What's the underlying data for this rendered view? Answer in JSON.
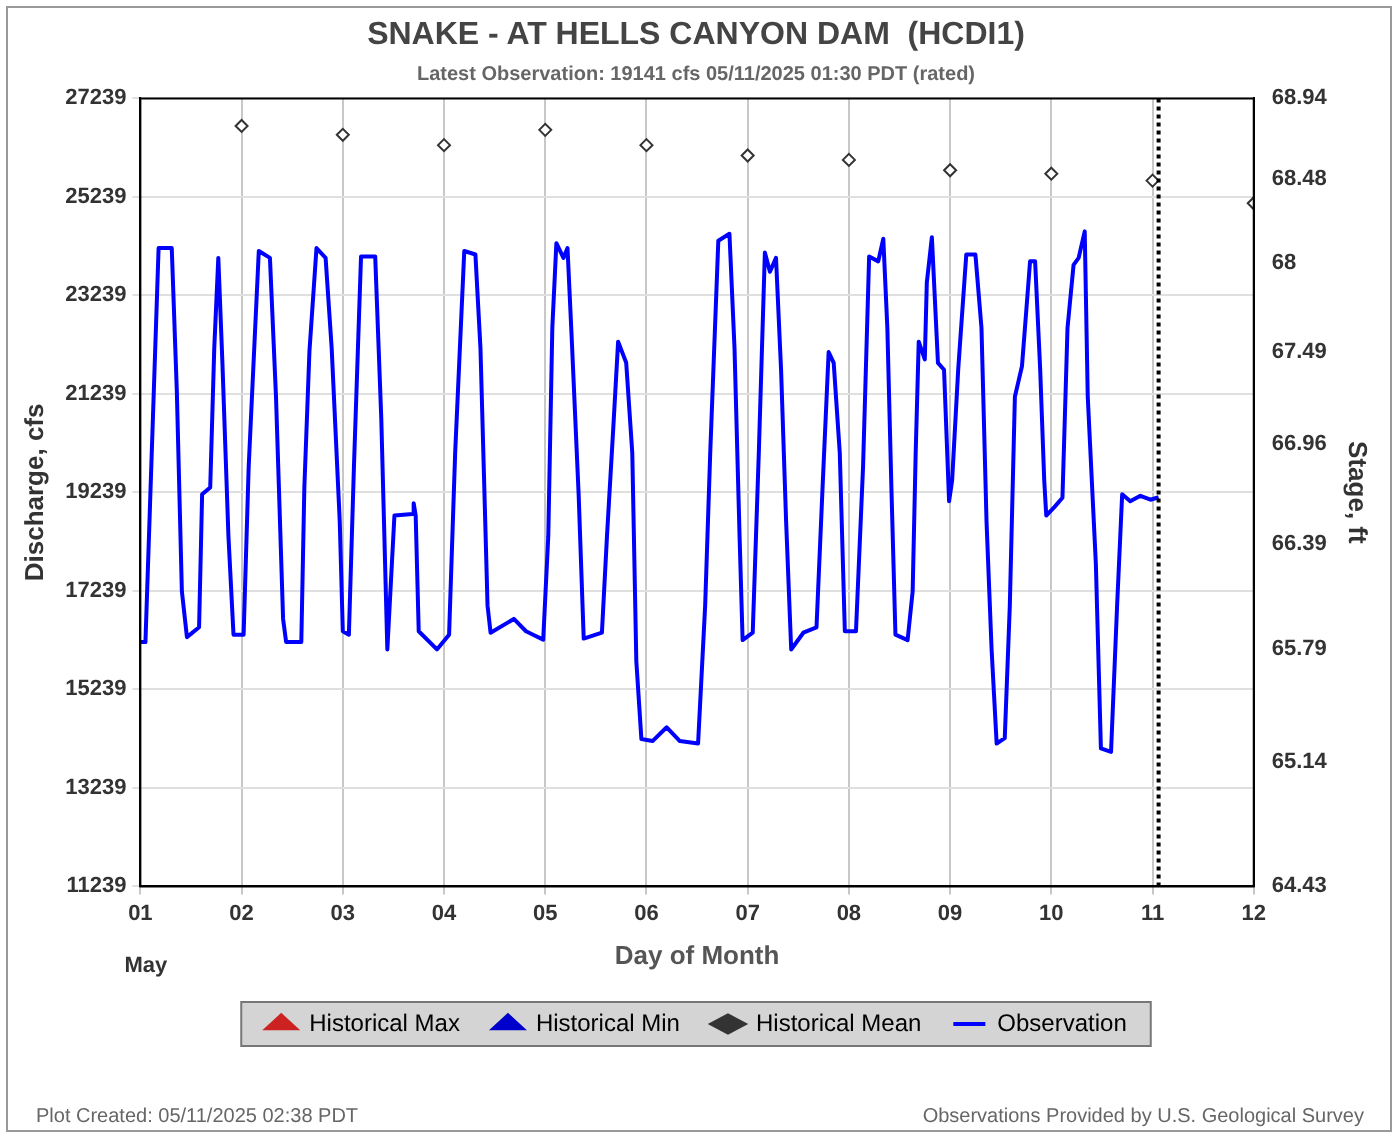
{
  "chart_data": {
    "type": "line",
    "title": "SNAKE - AT HELLS CANYON DAM  (HCDI1)",
    "subtitle": "Latest Observation: 19141 cfs 05/11/2025 01:30 PDT (rated)",
    "xlabel": "Day of Month",
    "ylabel": "Discharge, cfs",
    "y2label": "Stage, ft",
    "xlim": [
      1,
      12
    ],
    "xticks": [
      {
        "value": 1,
        "label": "01"
      },
      {
        "value": 2,
        "label": "02"
      },
      {
        "value": 3,
        "label": "03"
      },
      {
        "value": 4,
        "label": "04"
      },
      {
        "value": 5,
        "label": "05"
      },
      {
        "value": 6,
        "label": "06"
      },
      {
        "value": 7,
        "label": "07"
      },
      {
        "value": 8,
        "label": "08"
      },
      {
        "value": 9,
        "label": "09"
      },
      {
        "value": 10,
        "label": "10"
      },
      {
        "value": 11,
        "label": "11"
      },
      {
        "value": 12,
        "label": "12"
      }
    ],
    "ylim": [
      11239,
      27239
    ],
    "yticks": [
      11239,
      13239,
      15239,
      17239,
      19239,
      21239,
      23239,
      25239,
      27239
    ],
    "y2lim": [
      64.43,
      68.94
    ],
    "y2ticks": [
      64.43,
      65.14,
      65.79,
      66.39,
      66.96,
      67.49,
      68,
      68.48,
      68.94
    ],
    "grid": true,
    "legend": "bottom",
    "ref_lines": [
      {
        "axis": "x",
        "value": 11.06,
        "color": "#000000",
        "line_style": "dotted"
      }
    ],
    "annotations": [
      "May",
      "Plot Created: 05/11/2025 02:38 PDT",
      "Observations Provided by U.S. Geological Survey"
    ],
    "series": [
      {
        "name": "Historical Max",
        "type": "scatter",
        "marker": "triangle",
        "color": "#cc2222"
      },
      {
        "name": "Historical Min",
        "type": "scatter",
        "marker": "triangle",
        "color": "#0000cc"
      },
      {
        "name": "Historical Mean",
        "type": "scatter",
        "marker": "diamond",
        "color": "#333333",
        "x": [
          2,
          3,
          4,
          5,
          6,
          7,
          8,
          9,
          10,
          11,
          12
        ],
        "values": [
          26680,
          26500,
          26290,
          26600,
          26290,
          26080,
          25990,
          25780,
          25710,
          25570,
          25110
        ]
      },
      {
        "name": "Observation",
        "marker": "none",
        "line_style": "solid",
        "color": "#0000ff",
        "x": [
          1.0,
          1.05,
          1.18,
          1.31,
          1.36,
          1.41,
          1.46,
          1.58,
          1.61,
          1.69,
          1.73,
          1.77,
          1.81,
          1.87,
          1.92,
          2.02,
          2.07,
          2.17,
          2.28,
          2.34,
          2.41,
          2.44,
          2.59,
          2.62,
          2.67,
          2.74,
          2.83,
          2.89,
          2.97,
          3.0,
          3.06,
          3.11,
          3.18,
          3.32,
          3.38,
          3.44,
          3.51,
          3.69,
          3.7,
          3.72,
          3.75,
          3.93,
          4.05,
          4.11,
          4.2,
          4.31,
          4.36,
          4.43,
          4.46,
          4.69,
          4.81,
          4.88,
          4.98,
          5.03,
          5.07,
          5.11,
          5.18,
          5.22,
          5.26,
          5.33,
          5.38,
          5.56,
          5.61,
          5.67,
          5.72,
          5.8,
          5.86,
          5.9,
          5.95,
          6.06,
          6.2,
          6.33,
          6.51,
          6.58,
          6.63,
          6.71,
          6.82,
          6.87,
          6.92,
          6.95,
          7.05,
          7.11,
          7.17,
          7.22,
          7.28,
          7.33,
          7.38,
          7.43,
          7.55,
          7.68,
          7.74,
          7.8,
          7.85,
          7.91,
          7.96,
          8.07,
          8.14,
          8.2,
          8.29,
          8.34,
          8.38,
          8.42,
          8.46,
          8.58,
          8.63,
          8.66,
          8.69,
          8.75,
          8.77,
          8.82,
          8.88,
          8.94,
          8.99,
          9.02,
          9.08,
          9.16,
          9.25,
          9.31,
          9.36,
          9.41,
          9.46,
          9.54,
          9.59,
          9.64,
          9.71,
          9.75,
          9.79,
          9.84,
          9.89,
          9.93,
          9.95,
          10.03,
          10.11,
          10.16,
          10.22,
          10.27,
          10.33,
          10.36,
          10.44,
          10.49,
          10.59,
          10.65,
          10.7,
          10.78,
          10.88,
          10.98,
          11.06
        ],
        "values": [
          16200,
          16200,
          24200,
          24200,
          21300,
          17230,
          16300,
          16500,
          19200,
          19340,
          22170,
          24000,
          21900,
          18350,
          16350,
          16350,
          19760,
          24140,
          24000,
          21180,
          16670,
          16200,
          16200,
          19340,
          22090,
          24200,
          24000,
          22170,
          18640,
          16420,
          16350,
          19760,
          24030,
          24030,
          20750,
          16050,
          18770,
          18800,
          19020,
          18770,
          16420,
          16050,
          16350,
          20040,
          24140,
          24070,
          22170,
          16940,
          16390,
          16670,
          16420,
          16350,
          16250,
          18350,
          22580,
          24300,
          24000,
          24200,
          22440,
          19200,
          16270,
          16390,
          18350,
          20470,
          22300,
          21870,
          20040,
          15810,
          14230,
          14190,
          14470,
          14190,
          14140,
          16940,
          20040,
          24350,
          24490,
          22170,
          18350,
          16240,
          16390,
          20040,
          24110,
          23720,
          24000,
          21730,
          18640,
          16050,
          16390,
          16500,
          19340,
          22090,
          21870,
          20040,
          16420,
          16420,
          19760,
          24030,
          23930,
          24390,
          22580,
          19340,
          16350,
          16240,
          17230,
          20040,
          22300,
          21940,
          23500,
          24420,
          21870,
          21730,
          19060,
          19480,
          21730,
          24070,
          24070,
          22580,
          18640,
          16050,
          14140,
          14250,
          16940,
          21180,
          21800,
          22860,
          23930,
          23930,
          21730,
          19480,
          18770,
          18940,
          19130,
          22580,
          23860,
          24000,
          24540,
          21180,
          17790,
          14040,
          13970,
          16940,
          19200,
          19060,
          19170,
          19090,
          19140
        ]
      }
    ]
  }
}
